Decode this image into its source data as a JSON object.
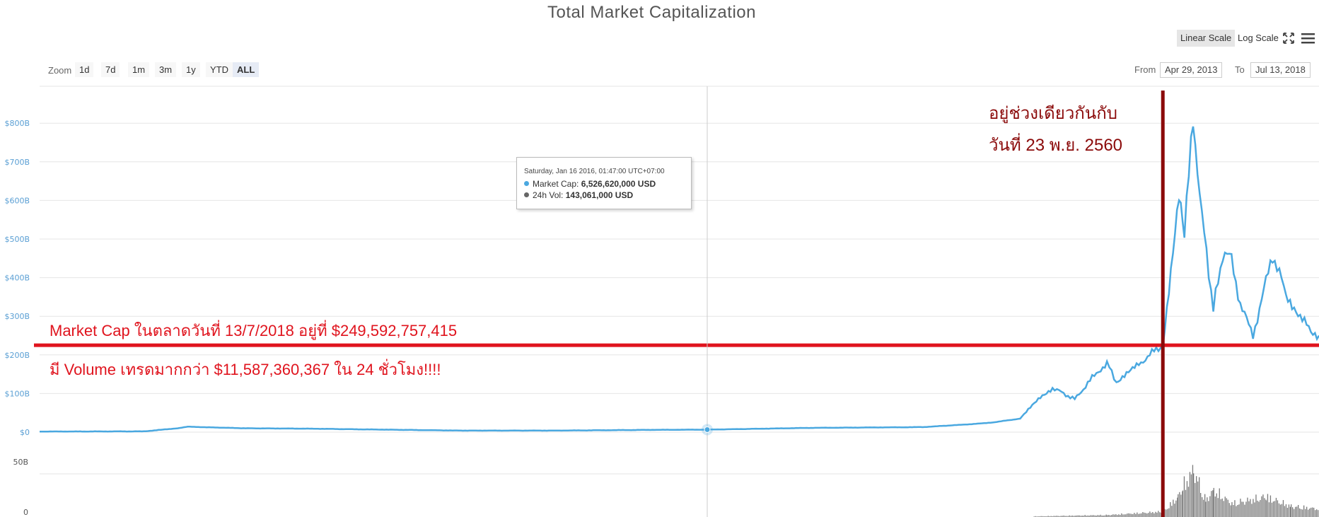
{
  "title": "Total Market Capitalization",
  "scale_buttons": {
    "linear": "Linear Scale",
    "log": "Log Scale",
    "active": "linear"
  },
  "icons": {
    "fullscreen": "fullscreen-icon",
    "menu": "hamburger-menu-icon"
  },
  "zoom": {
    "label": "Zoom",
    "options": [
      "1d",
      "7d",
      "1m",
      "3m",
      "1y",
      "YTD",
      "ALL"
    ],
    "active": "ALL"
  },
  "range": {
    "from_label": "From",
    "from_value": "Apr 29, 2013",
    "to_label": "To",
    "to_value": "Jul 13, 2018"
  },
  "tooltip": {
    "header": "Saturday, Jan 16 2016, 01:47:00 UTC+07:00",
    "market_cap_label": "Market Cap:",
    "market_cap_value": "6,526,620,000 USD",
    "volume_label": "24h Vol:",
    "volume_value": "143,061,000 USD"
  },
  "annotations": {
    "market_cap_line": "Market Cap ในตลาดวันที่ 13/7/2018 อยู่ที่ $249,592,757,415",
    "volume_line": "มี Volume เทรดมากกว่า $11,587,360,367 ใน 24 ชั่วโมง!!!!",
    "date_line1": "อยู่ช่วงเดียวกันกับ",
    "date_line2": "วันที่ 23 พ.ย. 2560"
  },
  "colors": {
    "market_cap": "#4aa8e0",
    "volume": "#7a7a7a",
    "annotation_red": "#e0141e",
    "annotation_darkred": "#8b0a0a",
    "grid": "#e6e6e6",
    "crosshair": "#cccccc"
  },
  "chart_data": {
    "type": "area",
    "title": "Total Market Capitalization",
    "x_range": [
      "2013-04-29",
      "2018-07-13"
    ],
    "y_axis": {
      "ticks": [
        "$0",
        "$100B",
        "$200B",
        "$300B",
        "$400B",
        "$500B",
        "$600B",
        "$700B",
        "$800B"
      ],
      "ylim": [
        0,
        800
      ]
    },
    "volume_axis": {
      "ticks": [
        "0",
        "50B"
      ]
    },
    "grid": true,
    "scale": "linear",
    "series": [
      {
        "name": "Market Cap",
        "unit": "B USD",
        "points": [
          [
            "2013-04-29",
            1.5
          ],
          [
            "2013-10-01",
            2
          ],
          [
            "2013-11-20",
            10
          ],
          [
            "2013-12-05",
            14
          ],
          [
            "2014-01-15",
            12
          ],
          [
            "2014-03-01",
            10
          ],
          [
            "2014-06-01",
            9
          ],
          [
            "2014-09-01",
            7
          ],
          [
            "2015-01-15",
            4
          ],
          [
            "2015-06-01",
            4
          ],
          [
            "2015-11-05",
            6
          ],
          [
            "2016-01-16",
            6.5
          ],
          [
            "2016-06-15",
            11
          ],
          [
            "2016-12-01",
            13
          ],
          [
            "2017-02-15",
            21
          ],
          [
            "2017-03-15",
            25
          ],
          [
            "2017-04-25",
            35
          ],
          [
            "2017-05-25",
            90
          ],
          [
            "2017-06-12",
            115
          ],
          [
            "2017-07-15",
            85
          ],
          [
            "2017-08-10",
            140
          ],
          [
            "2017-09-01",
            180
          ],
          [
            "2017-09-15",
            130
          ],
          [
            "2017-10-15",
            170
          ],
          [
            "2017-11-10",
            210
          ],
          [
            "2017-11-23",
            225
          ],
          [
            "2017-12-17",
            600
          ],
          [
            "2017-12-25",
            510
          ],
          [
            "2018-01-07",
            815
          ],
          [
            "2018-01-20",
            560
          ],
          [
            "2018-02-06",
            320
          ],
          [
            "2018-02-20",
            460
          ],
          [
            "2018-03-05",
            450
          ],
          [
            "2018-03-18",
            330
          ],
          [
            "2018-04-06",
            250
          ],
          [
            "2018-05-05",
            460
          ],
          [
            "2018-05-25",
            360
          ],
          [
            "2018-06-15",
            300
          ],
          [
            "2018-07-01",
            260
          ],
          [
            "2018-07-13",
            250
          ]
        ]
      },
      {
        "name": "24h Vol",
        "unit": "B USD",
        "points": [
          [
            "2017-05-15",
            1
          ],
          [
            "2017-09-01",
            3
          ],
          [
            "2017-11-23",
            8
          ],
          [
            "2017-12-15",
            30
          ],
          [
            "2017-12-22",
            45
          ],
          [
            "2018-01-07",
            70
          ],
          [
            "2018-01-25",
            25
          ],
          [
            "2018-02-06",
            40
          ],
          [
            "2018-03-05",
            20
          ],
          [
            "2018-04-25",
            30
          ],
          [
            "2018-06-01",
            16
          ],
          [
            "2018-07-13",
            12
          ]
        ]
      }
    ],
    "reference_lines": [
      {
        "orientation": "horizontal",
        "value": 225,
        "color": "#e0141e"
      },
      {
        "orientation": "vertical",
        "value": "2017-11-23",
        "color": "#8b0a0a"
      }
    ],
    "crosshair": {
      "x": "2016-01-16",
      "y": 6.5
    }
  }
}
